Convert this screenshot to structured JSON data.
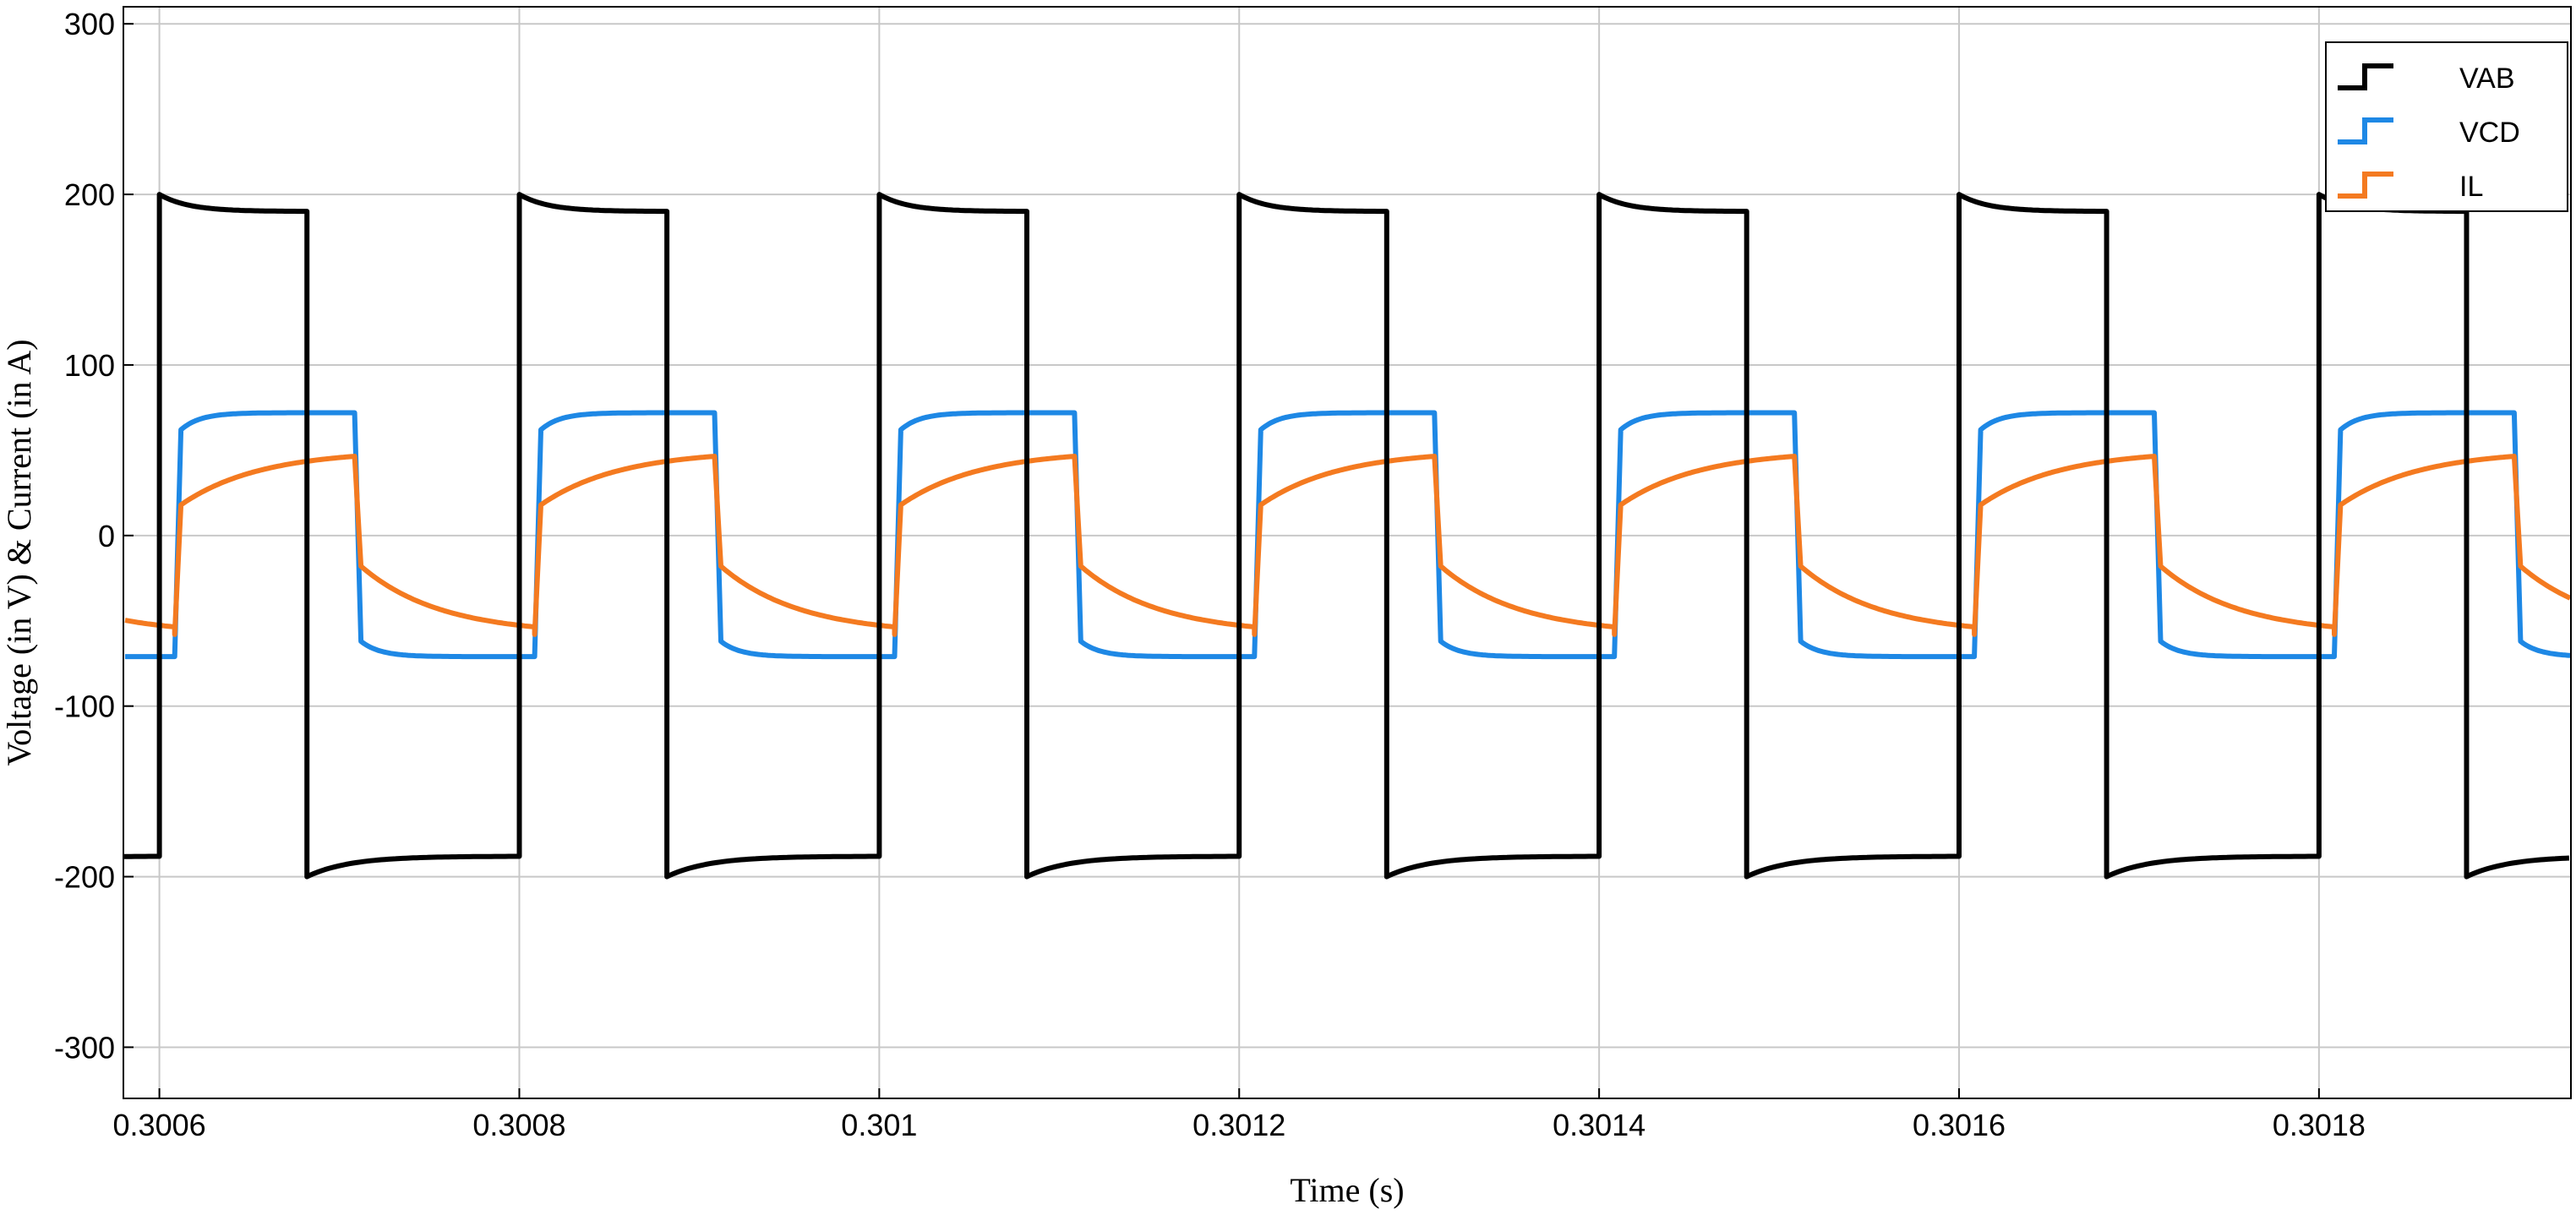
{
  "chart_data": {
    "type": "line",
    "xlabel": "Time (s)",
    "ylabel": "Voltage (in V) & Current (in A)",
    "xlim": [
      0.30058,
      0.30194
    ],
    "ylim": [
      -330,
      310
    ],
    "x_ticks": [
      {
        "value": 0.3006,
        "label": "0.3006"
      },
      {
        "value": 0.3008,
        "label": "0.3008"
      },
      {
        "value": 0.301,
        "label": "0.301"
      },
      {
        "value": 0.3012,
        "label": "0.3012"
      },
      {
        "value": 0.3014,
        "label": "0.3014"
      },
      {
        "value": 0.3016,
        "label": "0.3016"
      },
      {
        "value": 0.3018,
        "label": "0.3018"
      }
    ],
    "y_ticks": [
      {
        "value": 300,
        "label": "300"
      },
      {
        "value": 200,
        "label": "200"
      },
      {
        "value": 100,
        "label": "100"
      },
      {
        "value": 0,
        "label": "0"
      },
      {
        "value": -100,
        "label": "-100"
      },
      {
        "value": -200,
        "label": "-200"
      },
      {
        "value": -300,
        "label": "-300"
      }
    ],
    "grid": true,
    "legend_position": "top-right",
    "period": 0.0002,
    "first_rising_edge": 0.3006,
    "series": [
      {
        "name": "VAB",
        "color": "#000000",
        "high": {
          "start": 200,
          "end": 190
        },
        "low": {
          "start": -200,
          "end": -188
        },
        "phase_lead": 0.0,
        "high_fraction": 0.41
      },
      {
        "name": "VCD",
        "color": "#1e88e5",
        "high": {
          "start": 62,
          "end": 72
        },
        "low": {
          "start": -62,
          "end": -71
        },
        "phase_lead": 8.5e-06,
        "transition": 3.5e-06
      },
      {
        "name": "IL",
        "color": "#f47a20",
        "high": {
          "start": 18,
          "end": 50
        },
        "low": {
          "start": -18,
          "end": -58
        },
        "phase_lead": 8.5e-06,
        "transition": 3.5e-06
      }
    ]
  }
}
